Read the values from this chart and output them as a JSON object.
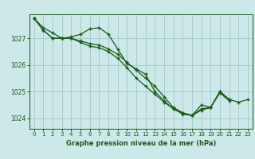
{
  "title": "Graphe pression niveau de la mer (hPa)",
  "bg_color": "#cce8e8",
  "grid_color": "#aacccc",
  "line_color": "#1a5c1a",
  "x_ticks": [
    0,
    1,
    2,
    3,
    4,
    5,
    6,
    7,
    8,
    9,
    10,
    11,
    12,
    13,
    14,
    15,
    16,
    17,
    18,
    19,
    20,
    21,
    22,
    23
  ],
  "ylim": [
    1023.6,
    1027.9
  ],
  "yticks": [
    1024,
    1025,
    1026,
    1027
  ],
  "series": [
    [
      1027.75,
      1027.4,
      1027.2,
      1027.0,
      1027.0,
      1026.9,
      1026.8,
      1026.75,
      1026.6,
      1026.4,
      1026.1,
      1025.8,
      1025.5,
      1025.2,
      1024.8,
      1024.4,
      1024.2,
      1024.1,
      1024.3,
      1024.4,
      1025.0,
      1024.7,
      1024.6,
      1024.7
    ],
    [
      1027.75,
      1027.3,
      1027.0,
      1027.0,
      1027.05,
      1027.15,
      1027.35,
      1027.4,
      1027.15,
      1026.6,
      1026.05,
      1025.85,
      1025.65,
      1025.0,
      1024.65,
      1024.35,
      1024.2,
      1024.1,
      1024.5,
      1024.4,
      1025.0,
      1024.7,
      null,
      null
    ],
    [
      1027.75,
      1027.3,
      1027.0,
      1027.0,
      1027.0,
      1026.85,
      1026.7,
      1026.65,
      1026.5,
      1026.25,
      1025.9,
      1025.5,
      1025.2,
      1024.9,
      1024.6,
      1024.35,
      1024.15,
      1024.1,
      1024.35,
      1024.4,
      1024.95,
      1024.65,
      null,
      null
    ]
  ]
}
